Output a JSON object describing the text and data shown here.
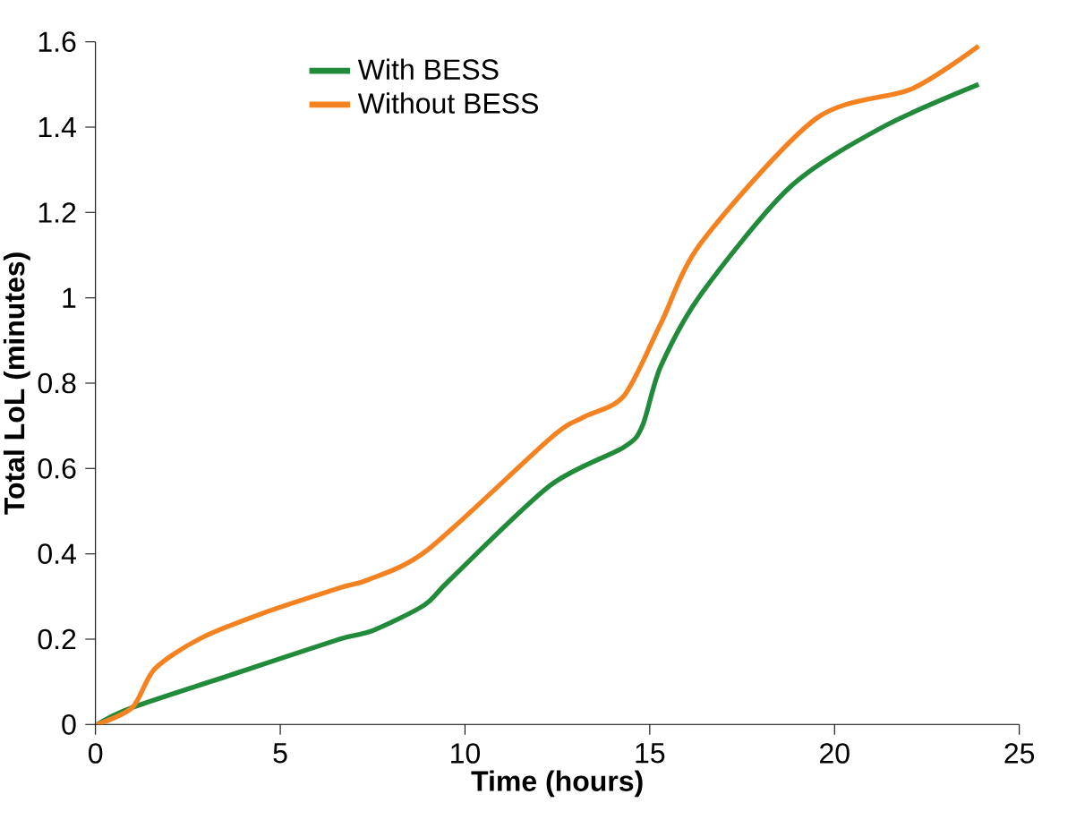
{
  "chart_data": {
    "type": "line",
    "xlabel": "Time (hours)",
    "ylabel": "Total LoL (minutes)",
    "xlim": [
      0,
      25
    ],
    "xticks": [
      0,
      5,
      10,
      15,
      20,
      25
    ],
    "ylim": [
      0,
      1.6
    ],
    "yticks": [
      0,
      0.2,
      0.4,
      0.6,
      0.8,
      1,
      1.2,
      1.4,
      1.6
    ],
    "legend": "top",
    "grid": false,
    "marker": "none",
    "line_style": "solid",
    "series": [
      {
        "name": "With BESS",
        "color": "#228b3b",
        "x": [
          0.05,
          1.0,
          3.8,
          6.6,
          7.5,
          8.9,
          9.6,
          12.3,
          14.3,
          14.8,
          15.3,
          16.4,
          18.8,
          21.3,
          23.9
        ],
        "values": [
          0,
          0.04,
          0.12,
          0.2,
          0.22,
          0.28,
          0.34,
          0.56,
          0.65,
          0.7,
          0.84,
          1.01,
          1.26,
          1.4,
          1.5
        ]
      },
      {
        "name": "Without BESS",
        "color": "#f58220",
        "x": [
          0.05,
          1.0,
          1.6,
          2.8,
          4.5,
          6.6,
          7.4,
          9.0,
          12.3,
          13.2,
          14.3,
          15.3,
          16.4,
          19.5,
          22.1,
          23.9
        ],
        "values": [
          0,
          0.04,
          0.13,
          0.2,
          0.26,
          0.32,
          0.34,
          0.41,
          0.67,
          0.72,
          0.77,
          0.94,
          1.13,
          1.42,
          1.49,
          1.59
        ]
      }
    ]
  }
}
